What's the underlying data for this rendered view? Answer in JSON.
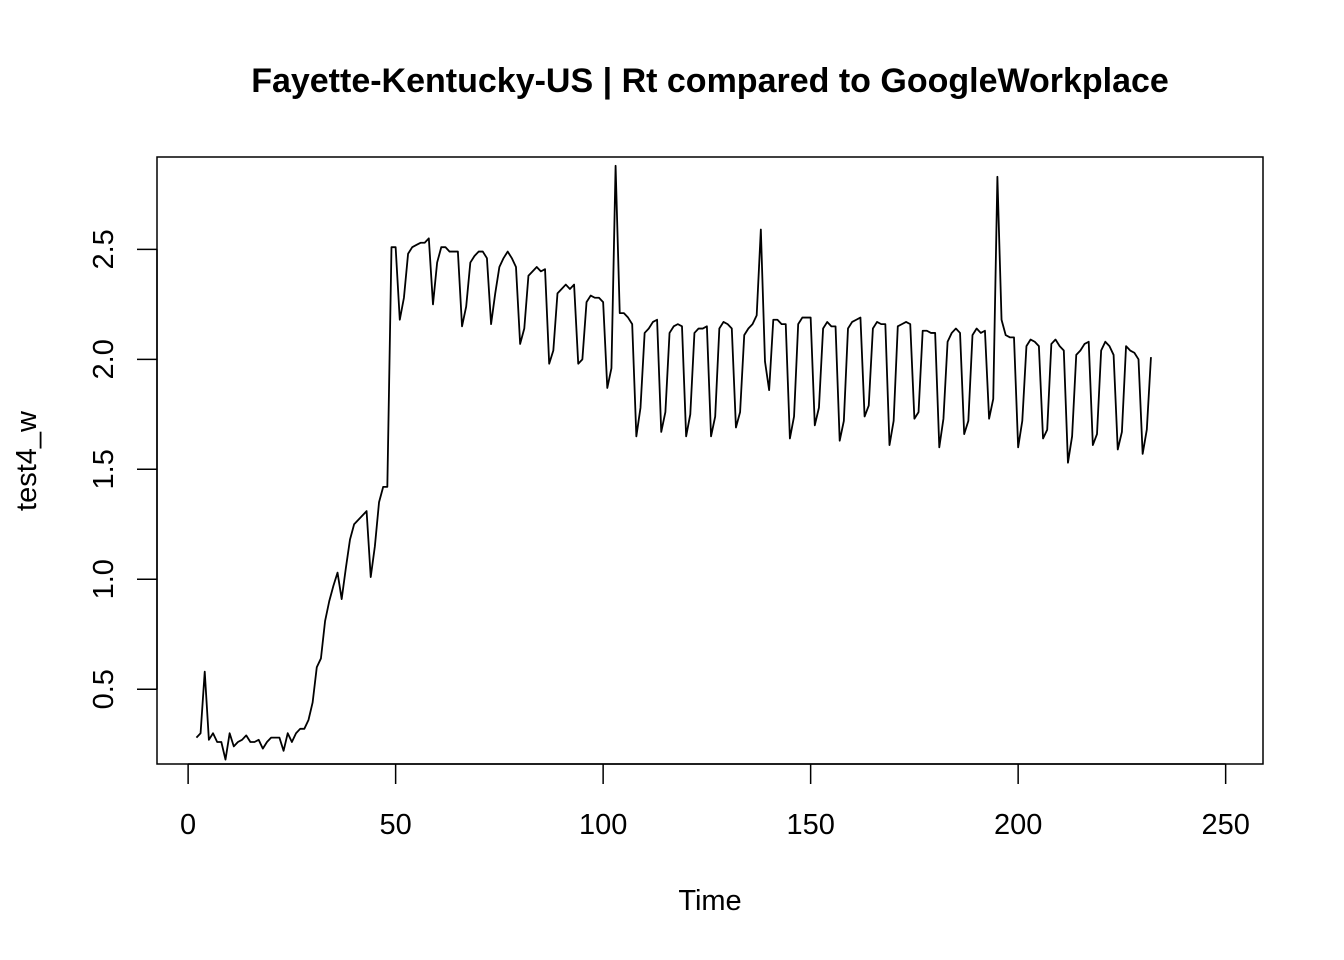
{
  "chart_data": {
    "type": "line",
    "title": "Fayette-Kentucky-US | Rt compared to GoogleWorkplace",
    "xlabel": "Time",
    "ylabel": "test4_w",
    "xlim": [
      -7.5,
      259
    ],
    "ylim": [
      0.16,
      2.92
    ],
    "xticks": [
      0,
      50,
      100,
      150,
      200,
      250
    ],
    "yticks": [
      0.5,
      1.0,
      1.5,
      2.0,
      2.5
    ],
    "xtick_labels": [
      "0",
      "50",
      "100",
      "150",
      "200",
      "250"
    ],
    "ytick_labels": [
      "0.5",
      "1.0",
      "1.5",
      "2.0",
      "2.5"
    ],
    "grid": false,
    "legend": "none",
    "line_color": "#000000",
    "series": [
      {
        "x_start": 2,
        "values": [
          0.28,
          0.3,
          0.58,
          0.27,
          0.3,
          0.26,
          0.26,
          0.18,
          0.3,
          0.24,
          0.26,
          0.27,
          0.29,
          0.26,
          0.26,
          0.27,
          0.23,
          0.26,
          0.28,
          0.28,
          0.28,
          0.22,
          0.3,
          0.26,
          0.3,
          0.32,
          0.32,
          0.36,
          0.44,
          0.6,
          0.64,
          0.81,
          0.9,
          0.97,
          1.03,
          0.91,
          1.05,
          1.18,
          1.25,
          1.27,
          1.29,
          1.31,
          1.01,
          1.15,
          1.35,
          1.42,
          1.42,
          2.51,
          2.51,
          2.18,
          2.28,
          2.48,
          2.51,
          2.52,
          2.53,
          2.53,
          2.55,
          2.25,
          2.44,
          2.51,
          2.51,
          2.49,
          2.49,
          2.49,
          2.15,
          2.24,
          2.44,
          2.47,
          2.49,
          2.49,
          2.46,
          2.16,
          2.3,
          2.42,
          2.46,
          2.49,
          2.46,
          2.42,
          2.07,
          2.14,
          2.38,
          2.4,
          2.42,
          2.4,
          2.41,
          1.98,
          2.04,
          2.3,
          2.32,
          2.34,
          2.32,
          2.34,
          1.98,
          2.0,
          2.26,
          2.29,
          2.28,
          2.28,
          2.26,
          1.87,
          1.96,
          2.88,
          2.21,
          2.21,
          2.19,
          2.16,
          1.65,
          1.78,
          2.12,
          2.14,
          2.17,
          2.18,
          1.67,
          1.76,
          2.12,
          2.15,
          2.16,
          2.15,
          1.65,
          1.75,
          2.12,
          2.14,
          2.14,
          2.15,
          1.65,
          1.74,
          2.14,
          2.17,
          2.16,
          2.14,
          1.69,
          1.76,
          2.11,
          2.14,
          2.16,
          2.2,
          2.59,
          1.99,
          1.86,
          2.18,
          2.18,
          2.16,
          2.16,
          1.64,
          1.74,
          2.16,
          2.19,
          2.19,
          2.19,
          1.7,
          1.78,
          2.14,
          2.17,
          2.15,
          2.15,
          1.63,
          1.72,
          2.14,
          2.17,
          2.18,
          2.19,
          1.74,
          1.79,
          2.14,
          2.17,
          2.16,
          2.16,
          1.61,
          1.72,
          2.15,
          2.16,
          2.17,
          2.16,
          1.73,
          1.76,
          2.13,
          2.13,
          2.12,
          2.12,
          1.6,
          1.73,
          2.08,
          2.12,
          2.14,
          2.12,
          1.66,
          1.72,
          2.11,
          2.14,
          2.12,
          2.13,
          1.73,
          1.82,
          2.83,
          2.18,
          2.11,
          2.1,
          2.1,
          1.6,
          1.72,
          2.06,
          2.09,
          2.08,
          2.06,
          1.64,
          1.68,
          2.07,
          2.09,
          2.06,
          2.04,
          1.53,
          1.65,
          2.02,
          2.04,
          2.07,
          2.08,
          1.61,
          1.66,
          2.04,
          2.08,
          2.06,
          2.02,
          1.59,
          1.67,
          2.06,
          2.04,
          2.03,
          2.0,
          1.57,
          1.68,
          2.01
        ]
      }
    ]
  }
}
